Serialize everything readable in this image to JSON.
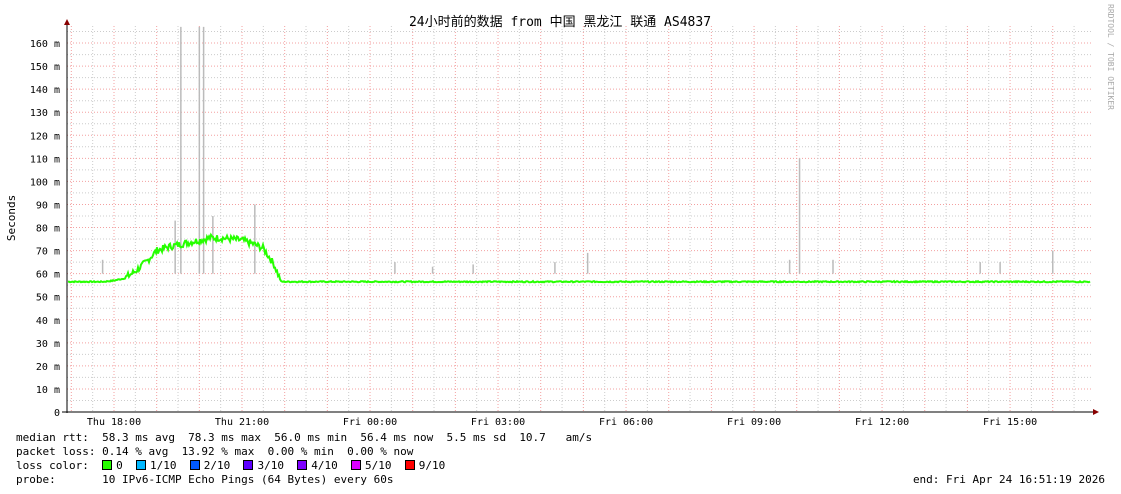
{
  "title": "24小时前的数据 from  中国 黑龙江 联通 AS4837",
  "watermark": "RRDTOOL / TOBI OETIKER",
  "chart_data": {
    "type": "line",
    "ylabel": "Seconds",
    "ylim": [
      0,
      167
    ],
    "y_ticks": [
      "0",
      "10 m",
      "20 m",
      "30 m",
      "40 m",
      "50 m",
      "60 m",
      "70 m",
      "80 m",
      "90 m",
      "100 m",
      "110 m",
      "120 m",
      "130 m",
      "140 m",
      "150 m",
      "160 m"
    ],
    "x_ticks": [
      "Thu 18:00",
      "Thu 21:00",
      "Fri 00:00",
      "Fri 03:00",
      "Fri 06:00",
      "Fri 09:00",
      "Fri 12:00",
      "Fri 15:00"
    ],
    "x_range": [
      "Thu 16:54",
      "Fri 16:51"
    ],
    "grid": true,
    "median_ms": [
      [
        "Thu 16:54",
        56.5
      ],
      [
        "Thu 17:45",
        56.5
      ],
      [
        "Thu 18:00",
        57
      ],
      [
        "Thu 18:15",
        58
      ],
      [
        "Thu 18:30",
        61
      ],
      [
        "Thu 18:45",
        65
      ],
      [
        "Thu 19:00",
        70
      ],
      [
        "Thu 19:15",
        71.5
      ],
      [
        "Thu 19:30",
        72.5
      ],
      [
        "Thu 19:45",
        73.5
      ],
      [
        "Thu 20:00",
        74.5
      ],
      [
        "Thu 20:15",
        75.5
      ],
      [
        "Thu 20:30",
        75.5
      ],
      [
        "Thu 20:45",
        75
      ],
      [
        "Thu 21:00",
        74.5
      ],
      [
        "Thu 21:15",
        73
      ],
      [
        "Thu 21:30",
        71
      ],
      [
        "Thu 21:45",
        64
      ],
      [
        "Thu 21:55",
        56.5
      ],
      [
        "Fri 16:51",
        56.5
      ]
    ],
    "max_spikes_ms": [
      [
        "Thu 17:44",
        66
      ],
      [
        "Thu 19:34",
        167
      ],
      [
        "Thu 19:26",
        83
      ],
      [
        "Thu 20:00",
        167
      ],
      [
        "Thu 20:06",
        167
      ],
      [
        "Thu 20:19",
        85
      ],
      [
        "Thu 21:18",
        90
      ],
      [
        "Fri 00:35",
        65
      ],
      [
        "Fri 01:28",
        63
      ],
      [
        "Fri 02:25",
        64
      ],
      [
        "Fri 04:20",
        65
      ],
      [
        "Fri 05:06",
        69
      ],
      [
        "Fri 09:50",
        66
      ],
      [
        "Fri 10:51",
        66
      ],
      [
        "Fri 10:04",
        110
      ],
      [
        "Fri 14:18",
        65
      ],
      [
        "Fri 14:46",
        65
      ],
      [
        "Fri 16:00",
        70
      ]
    ],
    "loss_colors": {
      "0": "#26ff00",
      "1/10": "#00b8ff",
      "2/10": "#0059ff",
      "3/10": "#5e00ff",
      "4/10": "#7e00ff",
      "5/10": "#dd00ff",
      "9/10": "#ff0000"
    }
  },
  "legend": {
    "median_rtt": "median rtt:  58.3 ms avg  78.3 ms max  56.0 ms min  56.4 ms now  5.5 ms sd  10.7   am/s",
    "packet_loss": "packet loss: 0.14 % avg  13.92 % max  0.00 % min  0.00 % now",
    "loss_color_label": "loss color:  ",
    "loss_items": [
      "0",
      "1/10",
      "2/10",
      "3/10",
      "4/10",
      "5/10",
      "9/10"
    ],
    "probe": "probe:       10 IPv6-ICMP Echo Pings (64 Bytes) every 60s",
    "end": "end: Fri Apr 24 16:51:19 2026"
  }
}
